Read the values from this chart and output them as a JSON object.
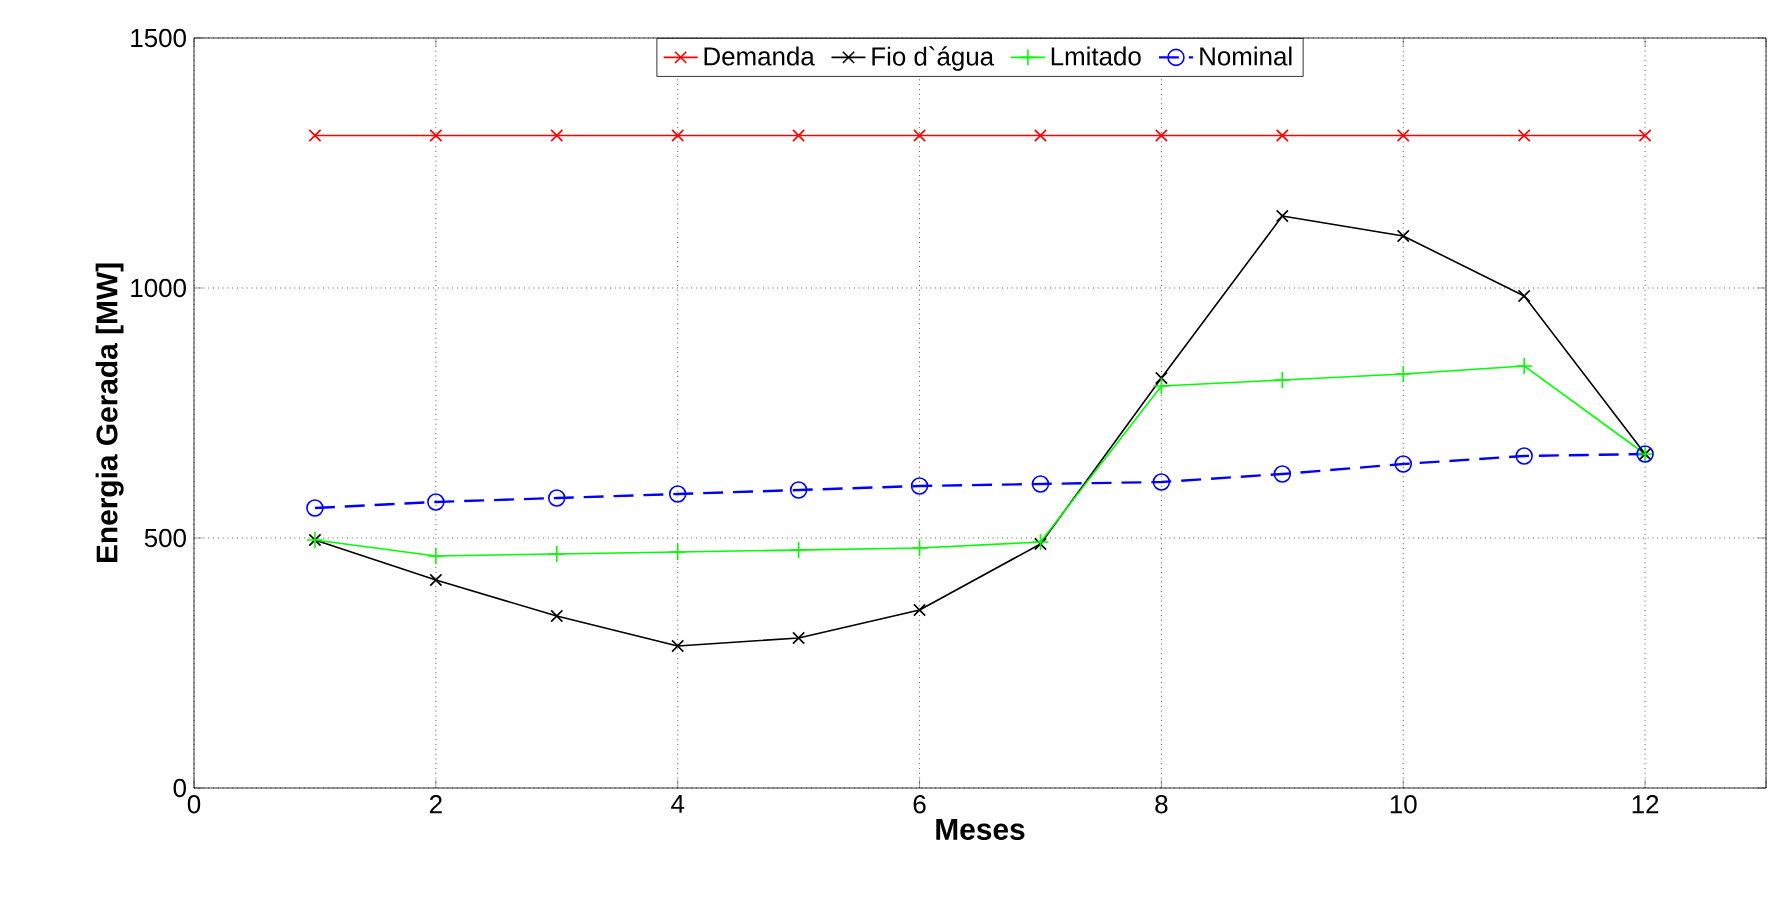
{
  "chart_data": {
    "type": "line",
    "xlabel": "Meses",
    "ylabel": "Energia Gerada [MW]",
    "x": [
      1,
      2,
      3,
      4,
      5,
      6,
      7,
      8,
      9,
      10,
      11,
      12
    ],
    "series": [
      {
        "name": "Demanda",
        "color": "#ff0000",
        "marker": "cross",
        "line_style": "solid",
        "values": [
          1305,
          1305,
          1305,
          1305,
          1305,
          1305,
          1305,
          1305,
          1305,
          1305,
          1305,
          1305
        ]
      },
      {
        "name": "Fio d`água",
        "color": "#000000",
        "marker": "cross",
        "line_style": "solid",
        "values": [
          496,
          416,
          344,
          284,
          300,
          356,
          488,
          820,
          1144,
          1104,
          984,
          668
        ]
      },
      {
        "name": "Lmitado",
        "color": "#00ff00",
        "marker": "plus",
        "line_style": "solid",
        "values": [
          496,
          464,
          468,
          472,
          476,
          480,
          492,
          804,
          816,
          828,
          844,
          668
        ]
      },
      {
        "name": "Nominal",
        "color": "#0000ff",
        "marker": "circle",
        "line_style": "dashed",
        "values": [
          560,
          572,
          580,
          588,
          596,
          604,
          608,
          612,
          628,
          648,
          664,
          668
        ]
      }
    ],
    "xlim": [
      0,
      13
    ],
    "ylim": [
      0,
      1500
    ],
    "xticks": [
      0,
      2,
      4,
      6,
      8,
      10,
      12,
      {
        "value": 13,
        "label": null
      }
    ],
    "yticks": [
      0,
      500,
      1000,
      1500
    ],
    "grid": true,
    "legend": "top"
  }
}
